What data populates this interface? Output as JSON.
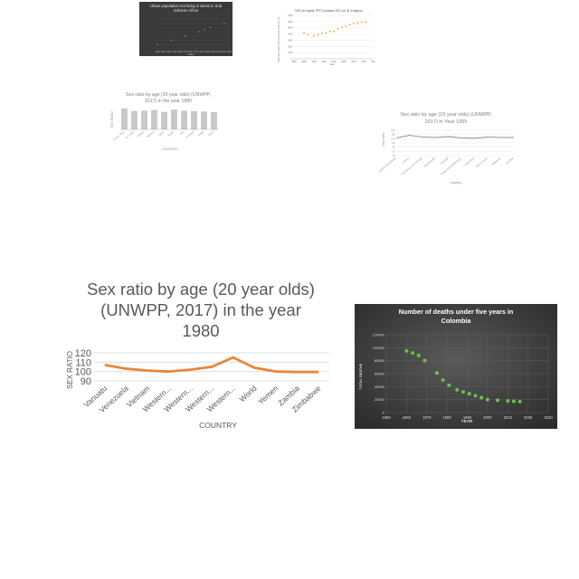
{
  "chart_data": [
    {
      "type": "scatter",
      "title": "Urban population not living in slums in Sub Saharan Africa",
      "xlabel": "Years",
      "ylabel": "",
      "xlim": [
        1990,
        2016
      ],
      "x_ticks": [
        "1990",
        "1992",
        "1994",
        "1996",
        "1998",
        "2000",
        "2002",
        "2004",
        "2006",
        "2008",
        "2010",
        "2012",
        "2014",
        "2016"
      ],
      "series": [
        {
          "x": [
            1990,
            1995,
            2000,
            2005,
            2007,
            2009,
            2014
          ],
          "y": [
            1,
            2,
            3,
            4,
            4.5,
            5,
            6
          ]
        }
      ],
      "ylim": [
        0,
        8
      ],
      "grid": true,
      "colors": {
        "background": "#3a3a3a",
        "point": "#8a8a8a"
      }
    },
    {
      "type": "scatter",
      "title": "GDP per capita, PPP (constant 2011 Int. $) in Nigeria",
      "xlabel": "Year",
      "ylabel": "GDP per capita, PPP (constant 2011 Int. $)",
      "xlim": [
        1980,
        2020
      ],
      "ylim": [
        0,
        7000
      ],
      "x_ticks": [
        "1980",
        "1985",
        "1990",
        "1995",
        "2000",
        "2005",
        "2010",
        "2015",
        "2020"
      ],
      "y_ticks": [
        "0",
        "1000",
        "2000",
        "3000",
        "4000",
        "5000",
        "6000",
        "7000"
      ],
      "series": [
        {
          "x": [
            1985,
            1987,
            1990,
            1992,
            1994,
            1996,
            1998,
            2000,
            2002,
            2004,
            2006,
            2008,
            2010,
            2012,
            2014,
            2016
          ],
          "y": [
            4200,
            3900,
            3700,
            3900,
            4100,
            4200,
            4400,
            4500,
            4800,
            5100,
            5300,
            5500,
            5700,
            5800,
            5900,
            5950
          ]
        }
      ],
      "grid": true,
      "colors": {
        "point": "#f0a030"
      }
    },
    {
      "type": "bar",
      "title": "Sex ratio by age (20 year olds) (UNWPP, 2017) in the year 1980",
      "xlabel": "COUNTRY",
      "ylabel": "SEX RATIO",
      "categories": [
        "Korea, Rep.",
        "Sri Lanka",
        "Malawi",
        "Belarus",
        "Qatar",
        "Yemen",
        "Iran",
        "Portugal",
        "Nepal",
        "Brazil"
      ],
      "values": [
        118,
        104,
        106,
        110,
        99,
        112,
        105,
        103,
        101,
        97
      ],
      "ylim": [
        0,
        125
      ],
      "grid": false,
      "colors": {
        "bar": "#c8c8c8"
      }
    },
    {
      "type": "line",
      "title": "Sex ratio by age (15 year olds) (UNWPP, 2017) in Year 1955",
      "xlabel": "Country",
      "ylabel": "Sex Ratio",
      "categories": [
        "Saint Vincent and the Grenadines",
        "Samoa",
        "Sao Tome and Principe",
        "Saudi Arabia",
        "Senegal",
        "Serbia and Montenegro",
        "Seychelles",
        "Sierra Leone",
        "Singapore",
        "Slovakia"
      ],
      "values": [
        102,
        108,
        104,
        103,
        105,
        102,
        101,
        104,
        103,
        103
      ],
      "ylim": [
        60,
        120
      ],
      "y_ticks": [
        "120",
        "110",
        "100",
        "90",
        "80",
        "70",
        "60"
      ],
      "grid": true,
      "colors": {
        "line": "#888888"
      }
    },
    {
      "type": "line",
      "title": "Sex ratio by age (20 year olds) (UNWPP, 2017) in the year 1980",
      "xlabel": "COUNTRY",
      "ylabel": "SEX RATIO",
      "categories": [
        "Vanuatu",
        "Venezuela",
        "Vietnam",
        "Western...",
        "Western...",
        "Western...",
        "Western...",
        "World",
        "Yemen",
        "Zambia",
        "Zimbabwe"
      ],
      "values": [
        107,
        103,
        101,
        100,
        102,
        105,
        115,
        104,
        100,
        99.5,
        99.5
      ],
      "ylim": [
        90,
        120
      ],
      "y_ticks": [
        "120",
        "110",
        "100",
        "90"
      ],
      "grid": true,
      "colors": {
        "line": "#e9853b",
        "text": "#595959"
      }
    },
    {
      "type": "scatter",
      "title": "Number of deaths under five years in Colombia",
      "xlabel": "YEAR",
      "ylabel": "TOTAL DEATHS",
      "xlim": [
        1950,
        2030
      ],
      "ylim": [
        0,
        120000
      ],
      "x_ticks": [
        "1950",
        "1960",
        "1970",
        "1980",
        "1990",
        "2000",
        "2010",
        "2020",
        "2030"
      ],
      "y_ticks": [
        "0",
        "20000",
        "40000",
        "60000",
        "80000",
        "100000",
        "120000"
      ],
      "series": [
        {
          "x": [
            1960,
            1963,
            1966,
            1969,
            1975,
            1978,
            1981,
            1985,
            1988,
            1991,
            1994,
            1997,
            2000,
            2005,
            2010,
            2013,
            2016
          ],
          "y": [
            95000,
            92000,
            88000,
            80000,
            61000,
            50000,
            42000,
            35000,
            32000,
            29000,
            26000,
            23000,
            20000,
            19000,
            18000,
            17500,
            17000
          ]
        }
      ],
      "grid": true,
      "colors": {
        "background": "#3c3c3c",
        "point": "#6cc04a",
        "text": "#ffffff"
      }
    }
  ]
}
